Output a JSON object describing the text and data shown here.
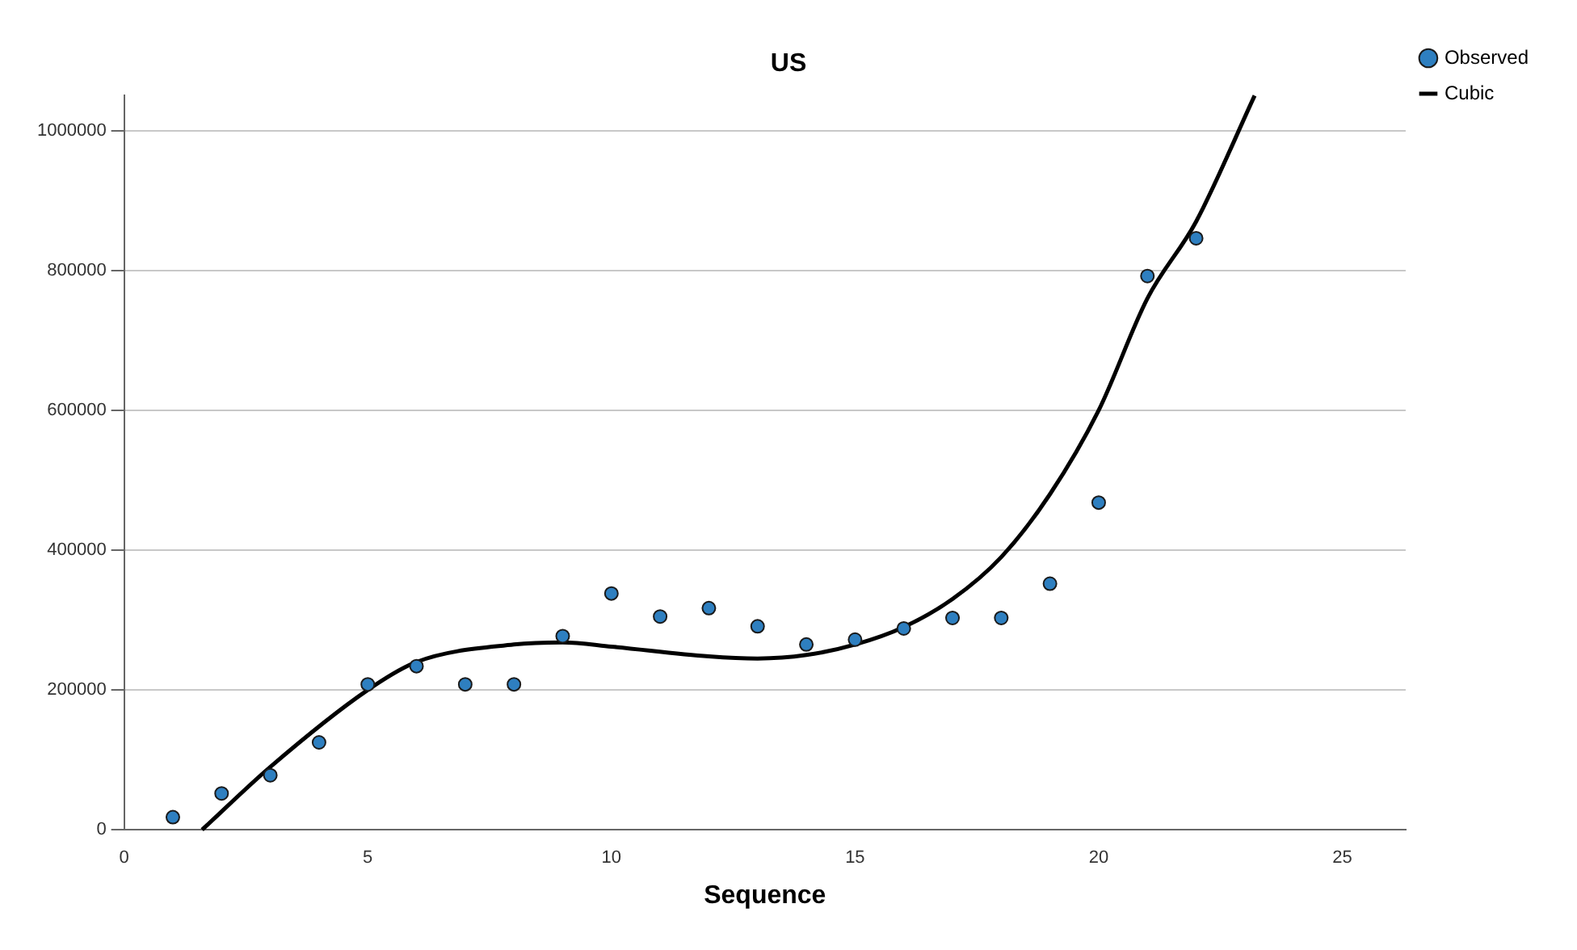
{
  "chart_data": {
    "type": "scatter",
    "title": "US",
    "xlabel": "Sequence",
    "xlim": [
      0,
      26.3
    ],
    "xticks": [
      0,
      5,
      10,
      15,
      20,
      25
    ],
    "ylim": [
      0,
      1050000
    ],
    "yticks": [
      0,
      200000,
      400000,
      600000,
      800000,
      1000000
    ],
    "grid": "y",
    "legend": "top right",
    "series": [
      {
        "name": "Observed",
        "marker": "circle",
        "color": "#2e7fc0",
        "x": [
          1,
          2,
          3,
          4,
          5,
          6,
          7,
          8,
          9,
          10,
          11,
          12,
          13,
          14,
          15,
          16,
          17,
          18,
          19,
          20,
          21,
          22
        ],
        "values": [
          18000,
          52000,
          78000,
          125000,
          208000,
          234000,
          208000,
          208000,
          277000,
          338000,
          305000,
          317000,
          291000,
          265000,
          272000,
          288000,
          303000,
          303000,
          352000,
          468000,
          792000,
          846000
        ]
      },
      {
        "name": "Cubic",
        "type": "line",
        "marker": "none",
        "color": "#000000",
        "x": [
          1.6,
          3,
          5,
          6,
          8,
          9,
          10,
          12,
          13,
          14,
          15,
          16,
          17,
          18,
          19,
          20,
          21,
          22,
          23.2
        ],
        "values": [
          0,
          90000,
          200000,
          240000,
          265000,
          268000,
          262000,
          248000,
          245000,
          250000,
          265000,
          290000,
          330000,
          390000,
          480000,
          600000,
          760000,
          870000,
          1050000
        ]
      }
    ]
  }
}
